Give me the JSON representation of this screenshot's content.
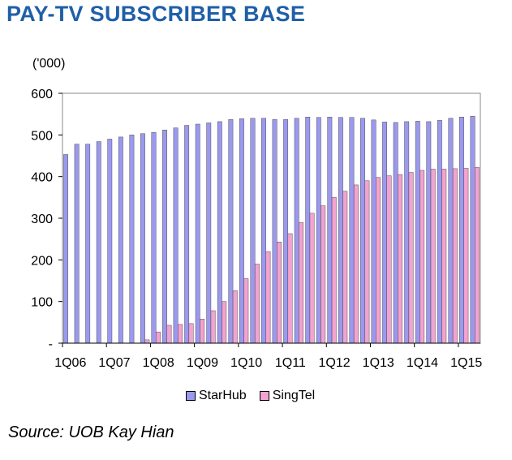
{
  "title": "PAY-TV SUBSCRIBER BASE",
  "unit_label": "('000)",
  "source": "Source: UOB Kay Hian",
  "colors": {
    "title": "#1f5fa8",
    "starhub": "#9b99ee",
    "singtel": "#f2a3cf",
    "plot_border": "#888888"
  },
  "chart_data": {
    "type": "bar",
    "title": "PAY-TV SUBSCRIBER BASE",
    "ylabel": "('000)",
    "xlabel": "",
    "ylim": [
      0,
      600
    ],
    "yticks": [
      0,
      100,
      200,
      300,
      400,
      500,
      600
    ],
    "ytick_labels": [
      "-",
      "100",
      "200",
      "300",
      "400",
      "500",
      "600"
    ],
    "tick_labels": [
      {
        "index": 0,
        "label": "1Q06"
      },
      {
        "index": 4,
        "label": "1Q07"
      },
      {
        "index": 8,
        "label": "1Q08"
      },
      {
        "index": 12,
        "label": "1Q09"
      },
      {
        "index": 16,
        "label": "1Q10"
      },
      {
        "index": 20,
        "label": "1Q11"
      },
      {
        "index": 24,
        "label": "1Q12"
      },
      {
        "index": 28,
        "label": "1Q13"
      },
      {
        "index": 32,
        "label": "1Q14"
      },
      {
        "index": 36,
        "label": "1Q15"
      }
    ],
    "categories": [
      "1Q06",
      "2Q06",
      "3Q06",
      "4Q06",
      "1Q07",
      "2Q07",
      "3Q07",
      "4Q07",
      "1Q08",
      "2Q08",
      "3Q08",
      "4Q08",
      "1Q09",
      "2Q09",
      "3Q09",
      "4Q09",
      "1Q10",
      "2Q10",
      "3Q10",
      "4Q10",
      "1Q11",
      "2Q11",
      "3Q11",
      "4Q11",
      "1Q12",
      "2Q12",
      "3Q12",
      "4Q12",
      "1Q13",
      "2Q13",
      "3Q13",
      "4Q13",
      "1Q14",
      "2Q14",
      "3Q14",
      "4Q14",
      "1Q15",
      "2Q15"
    ],
    "legend_position": "bottom",
    "series": [
      {
        "name": "StarHub",
        "values": [
          453,
          478,
          478,
          484,
          490,
          495,
          500,
          503,
          506,
          512,
          517,
          523,
          526,
          529,
          532,
          537,
          539,
          540,
          540,
          537,
          537,
          540,
          543,
          542,
          543,
          542,
          542,
          540,
          536,
          531,
          530,
          532,
          533,
          532,
          535,
          540,
          543,
          545
        ]
      },
      {
        "name": "SingTel",
        "values": [
          0,
          0,
          0,
          0,
          0,
          0,
          0,
          8,
          27,
          43,
          45,
          47,
          58,
          78,
          100,
          126,
          155,
          190,
          220,
          243,
          263,
          290,
          312,
          330,
          350,
          365,
          380,
          390,
          398,
          402,
          405,
          410,
          415,
          418,
          418,
          419,
          420,
          422
        ]
      }
    ]
  }
}
